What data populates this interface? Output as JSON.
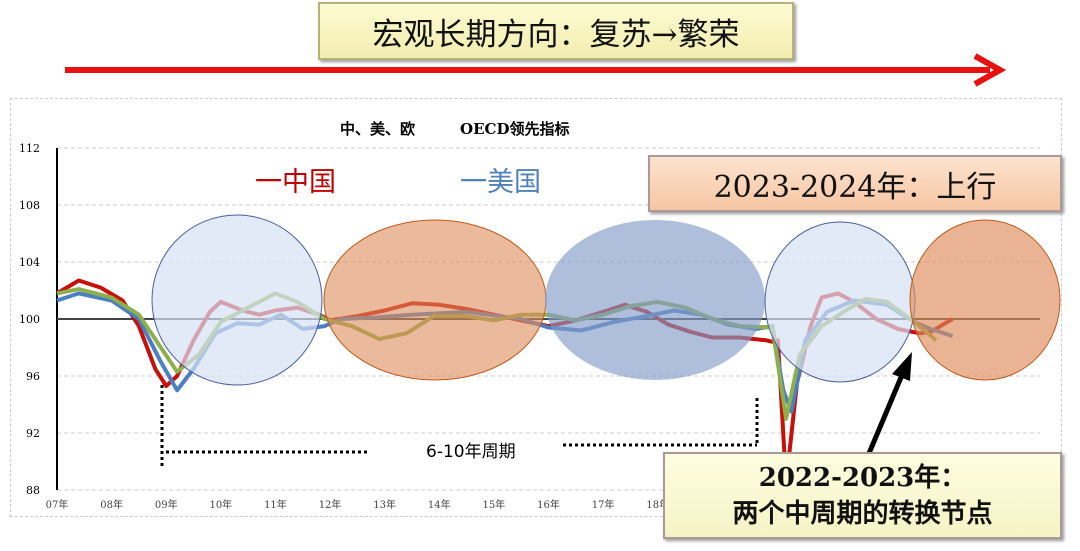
{
  "banner": {
    "text": "宏观长期方向：复苏→繁荣",
    "arrow_color": "#e81010"
  },
  "chart_data": {
    "type": "line",
    "title": "中、美、欧　　　OECD领先指标",
    "ylim": [
      88,
      112
    ],
    "yticks": [
      88,
      92,
      96,
      100,
      104,
      108,
      112
    ],
    "xlim": [
      2007,
      2025
    ],
    "xtick_labels": [
      "07年",
      "08年",
      "09年",
      "10年",
      "11年",
      "12年",
      "13年",
      "14年",
      "15年",
      "16年",
      "17年",
      "18年"
    ],
    "grid": true,
    "legend": [
      {
        "label": "一中国",
        "color": "#c00000"
      },
      {
        "label": "一美国",
        "color": "#4f81bd"
      }
    ],
    "series": [
      {
        "name": "中国",
        "color": "#c8100a",
        "x": [
          2007.0,
          2007.4,
          2007.8,
          2008.2,
          2008.5,
          2008.8,
          2009.0,
          2009.2,
          2009.5,
          2009.8,
          2010.0,
          2010.4,
          2010.7,
          2011.0,
          2011.4,
          2011.8,
          2012.0,
          2012.5,
          2013.0,
          2013.5,
          2014.0,
          2014.5,
          2015.0,
          2015.5,
          2016.0,
          2016.5,
          2017.0,
          2017.4,
          2017.8,
          2018.2,
          2018.6,
          2019.0,
          2019.5,
          2020.0,
          2020.1,
          2020.2,
          2020.35,
          2020.55,
          2020.8,
          2021.0,
          2021.3,
          2021.6,
          2022.0,
          2022.4,
          2022.8,
          2023.0,
          2023.4
        ],
        "y": [
          101.8,
          102.7,
          102.2,
          101.3,
          99.5,
          96.5,
          95.3,
          96.0,
          98.5,
          100.5,
          101.2,
          100.6,
          100.3,
          100.6,
          100.8,
          100.3,
          99.9,
          100.2,
          100.6,
          101.1,
          101.0,
          100.7,
          100.3,
          99.9,
          99.5,
          99.9,
          100.5,
          101.0,
          100.5,
          99.6,
          99.1,
          98.7,
          98.7,
          98.5,
          98.4,
          98.5,
          88.5,
          95.5,
          99.5,
          101.5,
          101.8,
          101.2,
          100.0,
          99.3,
          99.0,
          99.1,
          100.0
        ]
      },
      {
        "name": "美国",
        "color": "#4a7fc4",
        "x": [
          2007.0,
          2007.4,
          2008.0,
          2008.5,
          2008.9,
          2009.2,
          2009.5,
          2009.9,
          2010.3,
          2010.7,
          2011.1,
          2011.5,
          2011.9,
          2012.2,
          2012.8,
          2013.5,
          2014.5,
          2015.5,
          2016.0,
          2016.6,
          2017.2,
          2017.8,
          2018.3,
          2018.8,
          2019.3,
          2019.8,
          2020.1,
          2020.3,
          2020.45,
          2020.7,
          2021.1,
          2021.6,
          2022.2,
          2022.7,
          2023.0,
          2023.4
        ],
        "y": [
          101.3,
          101.8,
          101.3,
          100.0,
          97.0,
          95.0,
          96.5,
          99.0,
          99.7,
          99.6,
          100.3,
          99.3,
          99.5,
          100.0,
          100.1,
          100.3,
          100.5,
          100.0,
          99.4,
          99.2,
          99.8,
          100.2,
          100.6,
          100.3,
          99.6,
          99.3,
          99.5,
          95.0,
          93.5,
          98.5,
          100.5,
          101.3,
          101.0,
          99.8,
          99.3,
          98.8
        ]
      },
      {
        "name": "欧洲",
        "color": "#8db04a",
        "x": [
          2007.0,
          2007.4,
          2008.0,
          2008.5,
          2008.9,
          2009.2,
          2009.6,
          2010.0,
          2010.5,
          2011.0,
          2011.4,
          2011.9,
          2012.4,
          2012.9,
          2013.4,
          2013.9,
          2014.5,
          2015.0,
          2015.5,
          2016.0,
          2016.5,
          2017.0,
          2017.5,
          2018.0,
          2018.5,
          2019.0,
          2019.5,
          2020.1,
          2020.35,
          2020.6,
          2021.0,
          2021.4,
          2021.8,
          2022.2,
          2022.7,
          2023.1
        ],
        "y": [
          101.8,
          102.1,
          101.5,
          100.3,
          98.0,
          96.3,
          97.5,
          99.8,
          100.8,
          101.8,
          101.2,
          100.0,
          99.5,
          98.6,
          99.0,
          100.2,
          100.2,
          99.9,
          100.3,
          100.3,
          99.9,
          100.3,
          100.9,
          101.2,
          100.8,
          100.0,
          99.5,
          99.4,
          93.0,
          97.5,
          99.5,
          100.5,
          101.4,
          101.2,
          99.8,
          98.5
        ]
      }
    ]
  },
  "annotations": {
    "period_label": "6-10年周期",
    "box_upper": "2023-2024年：上行",
    "box_lower_line1": "2022-2023年：",
    "box_lower_line2": "两个中周期的转换节点"
  }
}
